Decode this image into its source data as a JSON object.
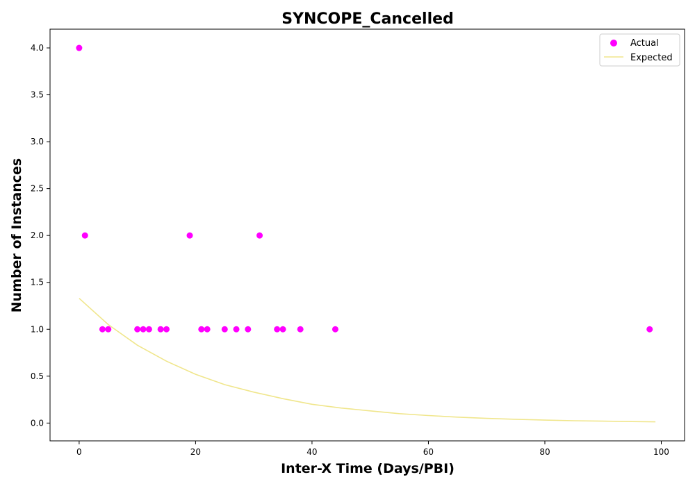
{
  "chart_data": {
    "type": "scatter",
    "title": "SYNCOPE_Cancelled",
    "xlabel": "Inter-X Time (Days/PBI)",
    "ylabel": "Number of Instances",
    "xlim": [
      -5,
      104
    ],
    "ylim": [
      -0.19,
      4.2
    ],
    "x_ticks": [
      0,
      20,
      40,
      60,
      80,
      100
    ],
    "y_ticks": [
      0.0,
      0.5,
      1.0,
      1.5,
      2.0,
      2.5,
      3.0,
      3.5,
      4.0
    ],
    "x_tick_labels": [
      "0",
      "20",
      "40",
      "60",
      "80",
      "100"
    ],
    "y_tick_labels": [
      "0.0",
      "0.5",
      "1.0",
      "1.5",
      "2.0",
      "2.5",
      "3.0",
      "3.5",
      "4.0"
    ],
    "grid": false,
    "legend_position": "top-right",
    "series": [
      {
        "name": "Actual",
        "kind": "scatter",
        "color": "#ff00ff",
        "points": [
          [
            0,
            4
          ],
          [
            1,
            2
          ],
          [
            4,
            1
          ],
          [
            5,
            1
          ],
          [
            10,
            1
          ],
          [
            11,
            1
          ],
          [
            12,
            1
          ],
          [
            14,
            1
          ],
          [
            15,
            1
          ],
          [
            19,
            2
          ],
          [
            21,
            1
          ],
          [
            22,
            1
          ],
          [
            25,
            1
          ],
          [
            27,
            1
          ],
          [
            29,
            1
          ],
          [
            31,
            2
          ],
          [
            34,
            1
          ],
          [
            35,
            1
          ],
          [
            38,
            1
          ],
          [
            44,
            1
          ],
          [
            98,
            1
          ]
        ]
      },
      {
        "name": "Expected",
        "kind": "line",
        "color": "#f0e68c",
        "points": [
          [
            0,
            1.33
          ],
          [
            5,
            1.05
          ],
          [
            10,
            0.83
          ],
          [
            15,
            0.66
          ],
          [
            20,
            0.52
          ],
          [
            25,
            0.41
          ],
          [
            30,
            0.33
          ],
          [
            35,
            0.26
          ],
          [
            40,
            0.2
          ],
          [
            45,
            0.16
          ],
          [
            50,
            0.13
          ],
          [
            55,
            0.1
          ],
          [
            60,
            0.08
          ],
          [
            65,
            0.063
          ],
          [
            70,
            0.05
          ],
          [
            75,
            0.04
          ],
          [
            80,
            0.031
          ],
          [
            85,
            0.025
          ],
          [
            90,
            0.02
          ],
          [
            95,
            0.016
          ],
          [
            99,
            0.013
          ]
        ]
      }
    ]
  }
}
